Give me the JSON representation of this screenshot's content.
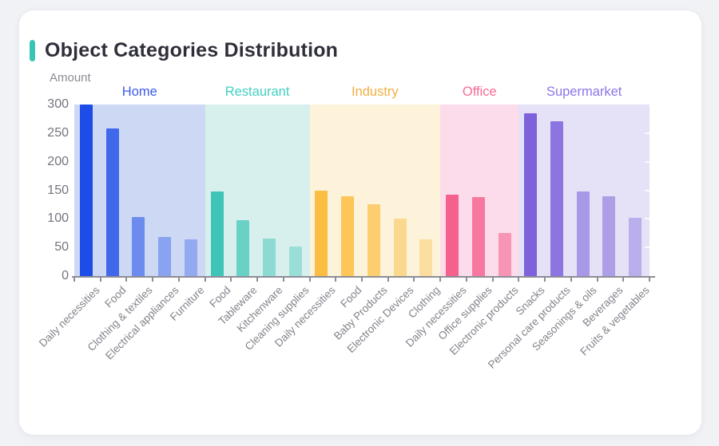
{
  "header": {
    "title": "Object Categories Distribution",
    "accent_color": "#38c5b6"
  },
  "chart_data": {
    "type": "bar",
    "title": "Object Categories Distribution",
    "ylabel": "Amount",
    "xlabel": "",
    "ylim": [
      0,
      300
    ],
    "yticks": [
      0,
      50,
      100,
      150,
      200,
      250,
      300
    ],
    "grid": false,
    "legend_position": "group-headers-above-plot",
    "groups": [
      {
        "name": "Home",
        "label_color": "#3b5be9",
        "bar_color": "#1d4ce8",
        "band_color": "#cdd8f5",
        "categories": [
          "Daily necessities",
          "Food",
          "Clothing & textiles",
          "Electrical appliances",
          "Furniture"
        ],
        "values": [
          300,
          258,
          103,
          69,
          64
        ],
        "bar_opacities": [
          1,
          0.8,
          0.55,
          0.38,
          0.33
        ]
      },
      {
        "name": "Restaurant",
        "label_color": "#44cfc0",
        "bar_color": "#3fc5b7",
        "band_color": "#d8f0ed",
        "categories": [
          "Food",
          "Tableware",
          "Kitchenware",
          "Cleaning supplies"
        ],
        "values": [
          148,
          97,
          65,
          51
        ],
        "bar_opacities": [
          1,
          0.72,
          0.5,
          0.4
        ]
      },
      {
        "name": "Industry",
        "label_color": "#f2ae41",
        "bar_color": "#fbbd42",
        "band_color": "#fdf3da",
        "categories": [
          "Daily necessities",
          "Food",
          "Baby Products",
          "Electronic Devices",
          "Clothing"
        ],
        "values": [
          150,
          139,
          126,
          100,
          64
        ],
        "bar_opacities": [
          1,
          0.85,
          0.7,
          0.5,
          0.38
        ]
      },
      {
        "name": "Office",
        "label_color": "#f76b95",
        "bar_color": "#f5618d",
        "band_color": "#fcdcea",
        "categories": [
          "Daily necessities",
          "Office supplies",
          "Electronic products"
        ],
        "values": [
          142,
          138,
          75
        ],
        "bar_opacities": [
          1,
          0.82,
          0.58
        ]
      },
      {
        "name": "Supermarket",
        "label_color": "#8d75e6",
        "bar_color": "#7d62dc",
        "band_color": "#e5e1f7",
        "categories": [
          "Snacks",
          "Personal care products",
          "Seasonings & oils",
          "Beverages",
          "Fruits & vegetables"
        ],
        "values": [
          285,
          271,
          148,
          140,
          102
        ],
        "bar_opacities": [
          1,
          0.85,
          0.58,
          0.53,
          0.4
        ]
      }
    ]
  }
}
